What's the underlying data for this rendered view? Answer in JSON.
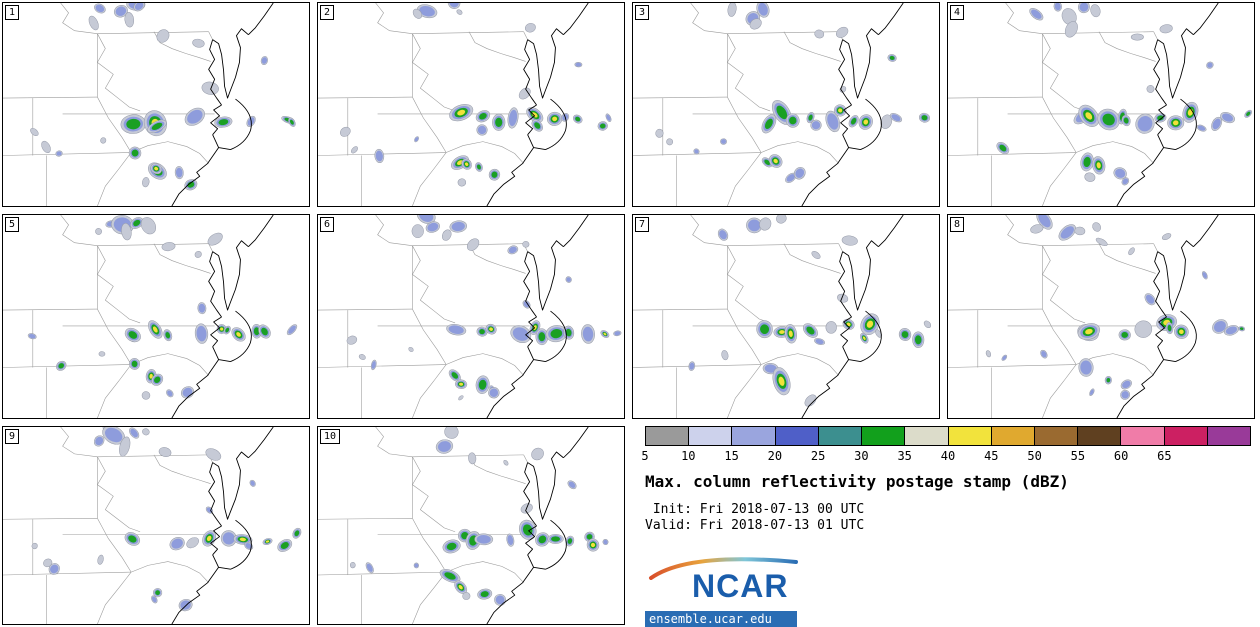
{
  "figure": {
    "title": "Max. column reflectivity postage stamp (dBZ)",
    "init_label": " Init: Fri 2018-07-13 00 UTC",
    "valid_label": "Valid: Fri 2018-07-13 01 UTC"
  },
  "branding": {
    "logo_text": "NCAR",
    "site_url": "ensemble.ucar.edu",
    "logo_color": "#1a5dab",
    "bar_color": "#2a6db4"
  },
  "colorbar": {
    "tick_labels": [
      "5",
      "10",
      "15",
      "20",
      "25",
      "30",
      "35",
      "40",
      "45",
      "50",
      "55",
      "60",
      "65"
    ],
    "segment_colors": [
      "#9a9a9a",
      "#cdd2ec",
      "#9aa5de",
      "#4f5fc8",
      "#3c8f8f",
      "#12a01c",
      "#dcdcca",
      "#f2e33c",
      "#e0a92f",
      "#9a6a30",
      "#5f4020",
      "#f07ca8",
      "#cc2062",
      "#993a99"
    ]
  },
  "panels": [
    {
      "label": "1"
    },
    {
      "label": "2"
    },
    {
      "label": "3"
    },
    {
      "label": "4"
    },
    {
      "label": "5"
    },
    {
      "label": "6"
    },
    {
      "label": "7"
    },
    {
      "label": "8"
    },
    {
      "label": "9"
    },
    {
      "label": "10"
    }
  ],
  "storms": {
    "level_colors": [
      "#c6cad6",
      "#8e9cdc",
      "#1aa023",
      "#f1e13a"
    ],
    "halo_stroke": "#959aa8",
    "base_cells": [
      [
        104,
        6,
        6,
        2
      ],
      [
        118,
        12,
        7,
        2
      ],
      [
        131,
        4,
        5,
        2
      ],
      [
        94,
        15,
        4,
        1
      ],
      [
        144,
        9,
        4,
        1
      ],
      [
        126,
        22,
        5,
        1
      ],
      [
        160,
        30,
        4,
        1
      ],
      [
        190,
        36,
        3,
        1
      ],
      [
        214,
        26,
        4,
        1
      ],
      [
        258,
        60,
        3,
        2
      ],
      [
        205,
        90,
        4,
        1
      ],
      [
        136,
        120,
        6,
        3
      ],
      [
        148,
        116,
        7,
        4
      ],
      [
        160,
        123,
        6,
        3
      ],
      [
        173,
        118,
        5,
        3
      ],
      [
        186,
        123,
        4,
        2
      ],
      [
        200,
        119,
        6,
        2
      ],
      [
        214,
        113,
        6,
        4
      ],
      [
        227,
        119,
        5,
        3
      ],
      [
        241,
        116,
        6,
        4
      ],
      [
        254,
        121,
        4,
        2
      ],
      [
        268,
        117,
        5,
        3
      ],
      [
        283,
        120,
        4,
        3
      ],
      [
        296,
        116,
        3,
        2
      ],
      [
        138,
        156,
        6,
        3
      ],
      [
        149,
        165,
        6,
        4
      ],
      [
        161,
        171,
        5,
        3
      ],
      [
        173,
        177,
        4,
        2
      ],
      [
        184,
        183,
        4,
        2
      ],
      [
        147,
        180,
        3,
        1
      ],
      [
        30,
        126,
        4,
        1
      ],
      [
        40,
        146,
        3,
        1
      ],
      [
        58,
        150,
        3,
        2
      ],
      [
        96,
        140,
        3,
        2
      ]
    ]
  }
}
